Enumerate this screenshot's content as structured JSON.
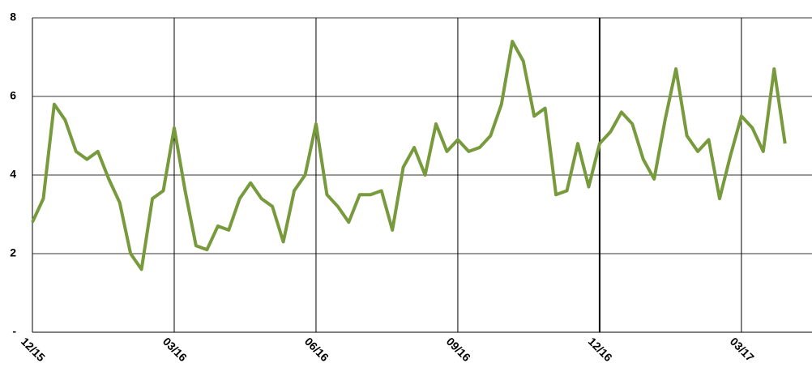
{
  "chart_data": {
    "type": "line",
    "categories": [
      "12/15",
      null,
      null,
      null,
      null,
      null,
      null,
      null,
      null,
      null,
      null,
      null,
      null,
      "03/16",
      null,
      null,
      null,
      null,
      null,
      null,
      null,
      null,
      null,
      null,
      null,
      null,
      "06/16",
      null,
      null,
      null,
      null,
      null,
      null,
      null,
      null,
      null,
      null,
      null,
      null,
      "09/16",
      null,
      null,
      null,
      null,
      null,
      null,
      null,
      null,
      null,
      null,
      null,
      null,
      "12/16",
      null,
      null,
      null,
      null,
      null,
      null,
      null,
      null,
      null,
      null,
      null,
      null,
      "03/17",
      null,
      null,
      null,
      null
    ],
    "series": [
      {
        "color": "#779a3c",
        "values": [
          2.8,
          3.4,
          5.8,
          5.4,
          4.6,
          4.4,
          4.6,
          3.9,
          3.3,
          2.0,
          1.6,
          3.4,
          3.6,
          5.2,
          3.6,
          2.2,
          2.1,
          2.7,
          2.6,
          3.4,
          3.8,
          3.4,
          3.2,
          2.3,
          3.6,
          4.0,
          5.3,
          3.5,
          3.2,
          2.8,
          3.5,
          3.5,
          3.6,
          2.6,
          4.2,
          4.7,
          4.0,
          5.3,
          4.6,
          4.9,
          4.6,
          4.7,
          5.0,
          5.8,
          7.4,
          6.9,
          5.5,
          5.7,
          3.5,
          3.6,
          4.8,
          3.7,
          4.8,
          5.1,
          5.6,
          5.3,
          4.4,
          3.9,
          5.4,
          6.7,
          5.0,
          4.6,
          4.9,
          3.4,
          4.5,
          5.5,
          5.2,
          4.6,
          6.7,
          4.8
        ]
      }
    ],
    "ylim": [
      0,
      8
    ],
    "yticks": [
      {
        "value": 0,
        "label": "-"
      },
      2,
      4,
      6,
      8
    ],
    "grid": true
  }
}
